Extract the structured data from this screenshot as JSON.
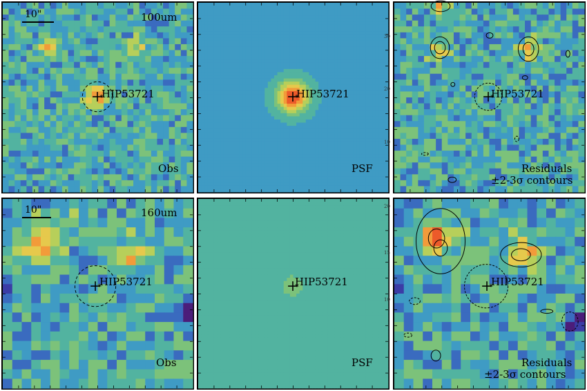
{
  "figure": {
    "scale_label": "10\"",
    "source_name": "HIP53721",
    "panels": [
      {
        "id": "obs-100",
        "band": "100um",
        "kind_label": "Obs",
        "extra_label": ""
      },
      {
        "id": "psf-100",
        "band": "",
        "kind_label": "PSF",
        "extra_label": ""
      },
      {
        "id": "res-100",
        "band": "",
        "kind_label": "Residuals",
        "extra_label": "±2-3σ contours"
      },
      {
        "id": "obs-160",
        "band": "160um",
        "kind_label": "Obs",
        "extra_label": ""
      },
      {
        "id": "psf-160",
        "band": "",
        "kind_label": "PSF",
        "extra_label": ""
      },
      {
        "id": "res-160",
        "band": "",
        "kind_label": "Residuals",
        "extra_label": "±2-3σ contours"
      }
    ],
    "axis_ticks": {
      "psf_100": [
        "30",
        "20",
        "10"
      ],
      "psf_160": [
        "20",
        "15",
        "10"
      ]
    },
    "colormap": [
      "#4b1d7a",
      "#3b3ca6",
      "#3a6bbf",
      "#3f9bc4",
      "#52b3a0",
      "#7cc27a",
      "#b7cf5a",
      "#e6c94c",
      "#f29b3a",
      "#ec5a2a"
    ]
  }
}
